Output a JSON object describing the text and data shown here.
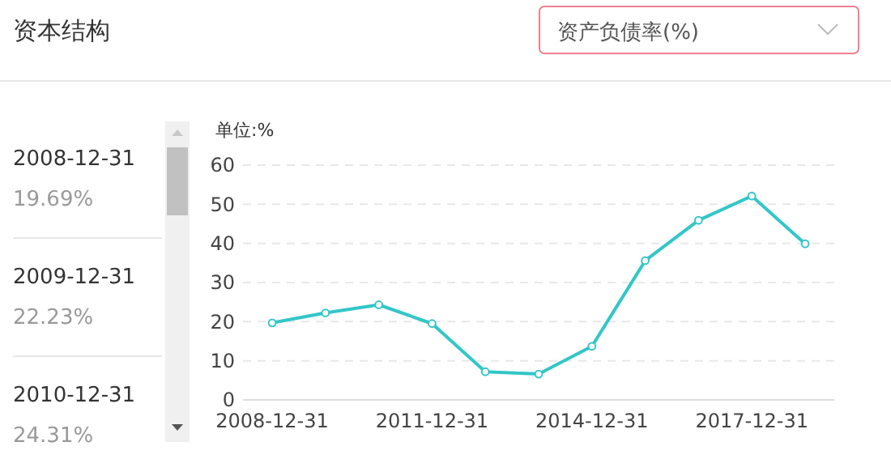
{
  "chart_data": {
    "type": "line",
    "title": "资本结构",
    "subtitle": "资产负债率(%)",
    "ylabel": "单位:%",
    "categories": [
      "2008-12-31",
      null,
      null,
      "2011-12-31",
      null,
      null,
      "2014-12-31",
      null,
      null,
      "2017-12-31",
      null
    ],
    "series": [
      {
        "color": "#33c6c8",
        "values": [
          19.69,
          22.23,
          24.31,
          19.5,
          7.2,
          6.6,
          13.7,
          35.6,
          45.9,
          52.1,
          39.9
        ]
      }
    ],
    "ylim": [
      0,
      60
    ],
    "yticks": [
      0,
      10,
      20,
      30,
      40,
      50,
      60
    ],
    "grid": "y",
    "marker": "circle",
    "line_style": "solid",
    "annotations": [
      "2008-12-31",
      "19.69%",
      "2009-12-31",
      "22.23%",
      "2010-12-31",
      "24.31%"
    ]
  }
}
